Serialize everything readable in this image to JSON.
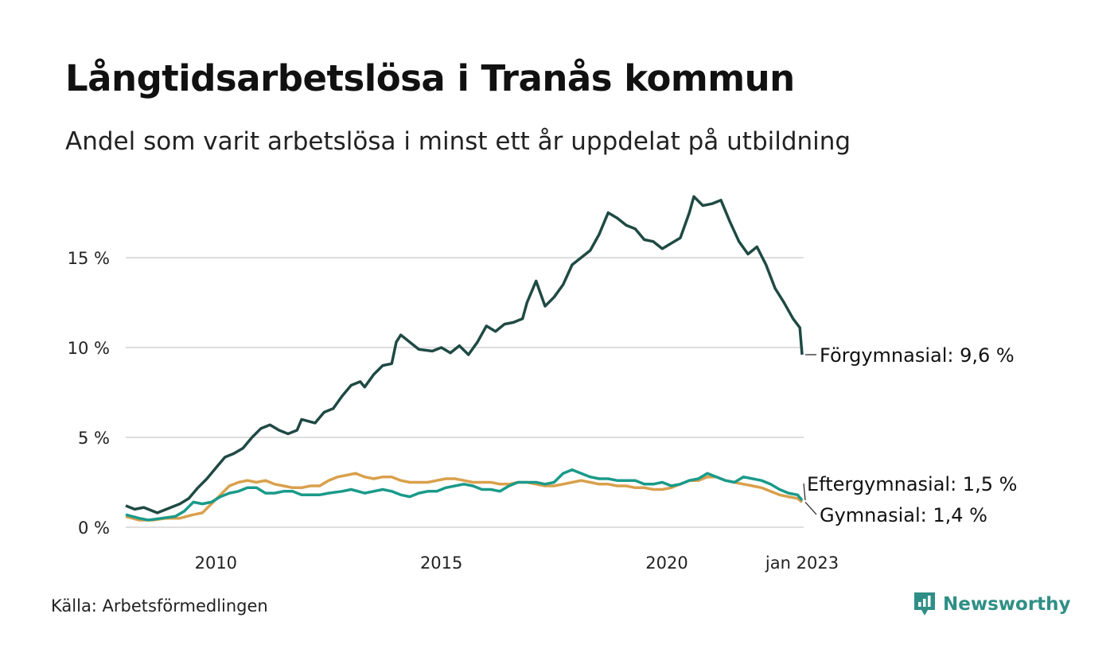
{
  "chart_data": {
    "type": "line",
    "title": "Långtidsarbetslösa i Tranås kommun",
    "subtitle": "Andel som varit arbetslösa i minst ett år uppdelat på utbildning",
    "ylim": [
      0,
      18.5
    ],
    "yticks": [
      0,
      5,
      10,
      15
    ],
    "ytick_labels": [
      "0 %",
      "5 %",
      "10 %",
      "15 %"
    ],
    "xlim": [
      2008.0,
      2023.0
    ],
    "xticks": [
      2010,
      2015,
      2020,
      2023
    ],
    "xtick_labels": [
      "2010",
      "2015",
      "2020",
      "jan 2023"
    ],
    "grid": "horizontal",
    "series": [
      {
        "name": "Förgymnasial",
        "end_label": "Förgymnasial: 9,6 %",
        "color": "#1f4a44",
        "points": [
          [
            2008.0,
            1.2
          ],
          [
            2008.2,
            1.0
          ],
          [
            2008.4,
            1.1
          ],
          [
            2008.7,
            0.8
          ],
          [
            2008.9,
            1.0
          ],
          [
            2009.2,
            1.3
          ],
          [
            2009.4,
            1.6
          ],
          [
            2009.6,
            2.2
          ],
          [
            2009.8,
            2.7
          ],
          [
            2010.0,
            3.3
          ],
          [
            2010.2,
            3.9
          ],
          [
            2010.4,
            4.1
          ],
          [
            2010.6,
            4.4
          ],
          [
            2010.8,
            5.0
          ],
          [
            2011.0,
            5.5
          ],
          [
            2011.2,
            5.7
          ],
          [
            2011.4,
            5.4
          ],
          [
            2011.6,
            5.2
          ],
          [
            2011.8,
            5.4
          ],
          [
            2011.9,
            6.0
          ],
          [
            2012.2,
            5.8
          ],
          [
            2012.4,
            6.4
          ],
          [
            2012.6,
            6.6
          ],
          [
            2012.8,
            7.3
          ],
          [
            2013.0,
            7.9
          ],
          [
            2013.2,
            8.1
          ],
          [
            2013.3,
            7.8
          ],
          [
            2013.5,
            8.5
          ],
          [
            2013.7,
            9.0
          ],
          [
            2013.9,
            9.1
          ],
          [
            2014.0,
            10.3
          ],
          [
            2014.1,
            10.7
          ],
          [
            2014.3,
            10.3
          ],
          [
            2014.5,
            9.9
          ],
          [
            2014.8,
            9.8
          ],
          [
            2015.0,
            10.0
          ],
          [
            2015.2,
            9.7
          ],
          [
            2015.4,
            10.1
          ],
          [
            2015.6,
            9.6
          ],
          [
            2015.8,
            10.3
          ],
          [
            2016.0,
            11.2
          ],
          [
            2016.2,
            10.9
          ],
          [
            2016.4,
            11.3
          ],
          [
            2016.6,
            11.4
          ],
          [
            2016.8,
            11.6
          ],
          [
            2016.9,
            12.5
          ],
          [
            2017.1,
            13.7
          ],
          [
            2017.3,
            12.3
          ],
          [
            2017.5,
            12.8
          ],
          [
            2017.7,
            13.5
          ],
          [
            2017.9,
            14.6
          ],
          [
            2018.1,
            15.0
          ],
          [
            2018.3,
            15.4
          ],
          [
            2018.5,
            16.3
          ],
          [
            2018.7,
            17.5
          ],
          [
            2018.9,
            17.2
          ],
          [
            2019.1,
            16.8
          ],
          [
            2019.3,
            16.6
          ],
          [
            2019.5,
            16.0
          ],
          [
            2019.7,
            15.9
          ],
          [
            2019.9,
            15.5
          ],
          [
            2020.1,
            15.8
          ],
          [
            2020.3,
            16.1
          ],
          [
            2020.5,
            17.5
          ],
          [
            2020.6,
            18.4
          ],
          [
            2020.8,
            17.9
          ],
          [
            2021.0,
            18.0
          ],
          [
            2021.2,
            18.2
          ],
          [
            2021.4,
            17.0
          ],
          [
            2021.6,
            15.9
          ],
          [
            2021.8,
            15.2
          ],
          [
            2022.0,
            15.6
          ],
          [
            2022.2,
            14.6
          ],
          [
            2022.4,
            13.3
          ],
          [
            2022.6,
            12.5
          ],
          [
            2022.8,
            11.6
          ],
          [
            2022.95,
            11.1
          ],
          [
            2023.0,
            9.6
          ]
        ]
      },
      {
        "name": "Eftergymnasial",
        "end_label": "Eftergymnasial: 1,5 %",
        "color": "#1a9a8a",
        "points": [
          [
            2008.0,
            0.7
          ],
          [
            2008.3,
            0.5
          ],
          [
            2008.5,
            0.4
          ],
          [
            2008.8,
            0.5
          ],
          [
            2009.1,
            0.6
          ],
          [
            2009.3,
            0.9
          ],
          [
            2009.5,
            1.4
          ],
          [
            2009.7,
            1.3
          ],
          [
            2009.9,
            1.4
          ],
          [
            2010.1,
            1.7
          ],
          [
            2010.3,
            1.9
          ],
          [
            2010.5,
            2.0
          ],
          [
            2010.7,
            2.2
          ],
          [
            2010.9,
            2.2
          ],
          [
            2011.1,
            1.9
          ],
          [
            2011.3,
            1.9
          ],
          [
            2011.5,
            2.0
          ],
          [
            2011.7,
            2.0
          ],
          [
            2011.9,
            1.8
          ],
          [
            2012.1,
            1.8
          ],
          [
            2012.3,
            1.8
          ],
          [
            2012.5,
            1.9
          ],
          [
            2012.8,
            2.0
          ],
          [
            2013.0,
            2.1
          ],
          [
            2013.3,
            1.9
          ],
          [
            2013.5,
            2.0
          ],
          [
            2013.7,
            2.1
          ],
          [
            2013.9,
            2.0
          ],
          [
            2014.1,
            1.8
          ],
          [
            2014.3,
            1.7
          ],
          [
            2014.5,
            1.9
          ],
          [
            2014.7,
            2.0
          ],
          [
            2014.9,
            2.0
          ],
          [
            2015.1,
            2.2
          ],
          [
            2015.3,
            2.3
          ],
          [
            2015.5,
            2.4
          ],
          [
            2015.7,
            2.3
          ],
          [
            2015.9,
            2.1
          ],
          [
            2016.1,
            2.1
          ],
          [
            2016.3,
            2.0
          ],
          [
            2016.5,
            2.3
          ],
          [
            2016.7,
            2.5
          ],
          [
            2016.9,
            2.5
          ],
          [
            2017.1,
            2.5
          ],
          [
            2017.3,
            2.4
          ],
          [
            2017.5,
            2.5
          ],
          [
            2017.7,
            3.0
          ],
          [
            2017.9,
            3.2
          ],
          [
            2018.1,
            3.0
          ],
          [
            2018.3,
            2.8
          ],
          [
            2018.5,
            2.7
          ],
          [
            2018.7,
            2.7
          ],
          [
            2018.9,
            2.6
          ],
          [
            2019.1,
            2.6
          ],
          [
            2019.3,
            2.6
          ],
          [
            2019.5,
            2.4
          ],
          [
            2019.7,
            2.4
          ],
          [
            2019.9,
            2.5
          ],
          [
            2020.1,
            2.3
          ],
          [
            2020.3,
            2.4
          ],
          [
            2020.5,
            2.6
          ],
          [
            2020.7,
            2.7
          ],
          [
            2020.9,
            3.0
          ],
          [
            2021.1,
            2.8
          ],
          [
            2021.3,
            2.6
          ],
          [
            2021.5,
            2.5
          ],
          [
            2021.7,
            2.8
          ],
          [
            2021.9,
            2.7
          ],
          [
            2022.1,
            2.6
          ],
          [
            2022.3,
            2.4
          ],
          [
            2022.5,
            2.1
          ],
          [
            2022.7,
            1.9
          ],
          [
            2022.9,
            1.8
          ],
          [
            2023.0,
            1.5
          ]
        ]
      },
      {
        "name": "Gymnasial",
        "end_label": "Gymnasial: 1,4 %",
        "color": "#d9a04c",
        "points": [
          [
            2008.0,
            0.6
          ],
          [
            2008.3,
            0.4
          ],
          [
            2008.6,
            0.4
          ],
          [
            2008.9,
            0.5
          ],
          [
            2009.2,
            0.5
          ],
          [
            2009.5,
            0.7
          ],
          [
            2009.7,
            0.8
          ],
          [
            2009.9,
            1.3
          ],
          [
            2010.1,
            1.8
          ],
          [
            2010.3,
            2.3
          ],
          [
            2010.5,
            2.5
          ],
          [
            2010.7,
            2.6
          ],
          [
            2010.9,
            2.5
          ],
          [
            2011.1,
            2.6
          ],
          [
            2011.3,
            2.4
          ],
          [
            2011.5,
            2.3
          ],
          [
            2011.7,
            2.2
          ],
          [
            2011.9,
            2.2
          ],
          [
            2012.1,
            2.3
          ],
          [
            2012.3,
            2.3
          ],
          [
            2012.5,
            2.6
          ],
          [
            2012.7,
            2.8
          ],
          [
            2012.9,
            2.9
          ],
          [
            2013.1,
            3.0
          ],
          [
            2013.3,
            2.8
          ],
          [
            2013.5,
            2.7
          ],
          [
            2013.7,
            2.8
          ],
          [
            2013.9,
            2.8
          ],
          [
            2014.1,
            2.6
          ],
          [
            2014.3,
            2.5
          ],
          [
            2014.5,
            2.5
          ],
          [
            2014.7,
            2.5
          ],
          [
            2014.9,
            2.6
          ],
          [
            2015.1,
            2.7
          ],
          [
            2015.3,
            2.7
          ],
          [
            2015.5,
            2.6
          ],
          [
            2015.7,
            2.5
          ],
          [
            2015.9,
            2.5
          ],
          [
            2016.1,
            2.5
          ],
          [
            2016.3,
            2.4
          ],
          [
            2016.5,
            2.4
          ],
          [
            2016.7,
            2.5
          ],
          [
            2016.9,
            2.5
          ],
          [
            2017.1,
            2.4
          ],
          [
            2017.3,
            2.3
          ],
          [
            2017.5,
            2.3
          ],
          [
            2017.7,
            2.4
          ],
          [
            2017.9,
            2.5
          ],
          [
            2018.1,
            2.6
          ],
          [
            2018.3,
            2.5
          ],
          [
            2018.5,
            2.4
          ],
          [
            2018.7,
            2.4
          ],
          [
            2018.9,
            2.3
          ],
          [
            2019.1,
            2.3
          ],
          [
            2019.3,
            2.2
          ],
          [
            2019.5,
            2.2
          ],
          [
            2019.7,
            2.1
          ],
          [
            2019.9,
            2.1
          ],
          [
            2020.1,
            2.2
          ],
          [
            2020.3,
            2.4
          ],
          [
            2020.5,
            2.6
          ],
          [
            2020.7,
            2.6
          ],
          [
            2020.9,
            2.8
          ],
          [
            2021.1,
            2.8
          ],
          [
            2021.3,
            2.6
          ],
          [
            2021.5,
            2.5
          ],
          [
            2021.7,
            2.4
          ],
          [
            2021.9,
            2.3
          ],
          [
            2022.1,
            2.2
          ],
          [
            2022.3,
            2.0
          ],
          [
            2022.5,
            1.8
          ],
          [
            2022.7,
            1.7
          ],
          [
            2022.9,
            1.6
          ],
          [
            2023.0,
            1.4
          ]
        ]
      }
    ]
  },
  "footer": {
    "source": "Källa: Arbetsförmedlingen",
    "brand": "Newsworthy",
    "brand_color": "#2f8f86",
    "brand_icon": "bar-chart-flag-icon"
  }
}
